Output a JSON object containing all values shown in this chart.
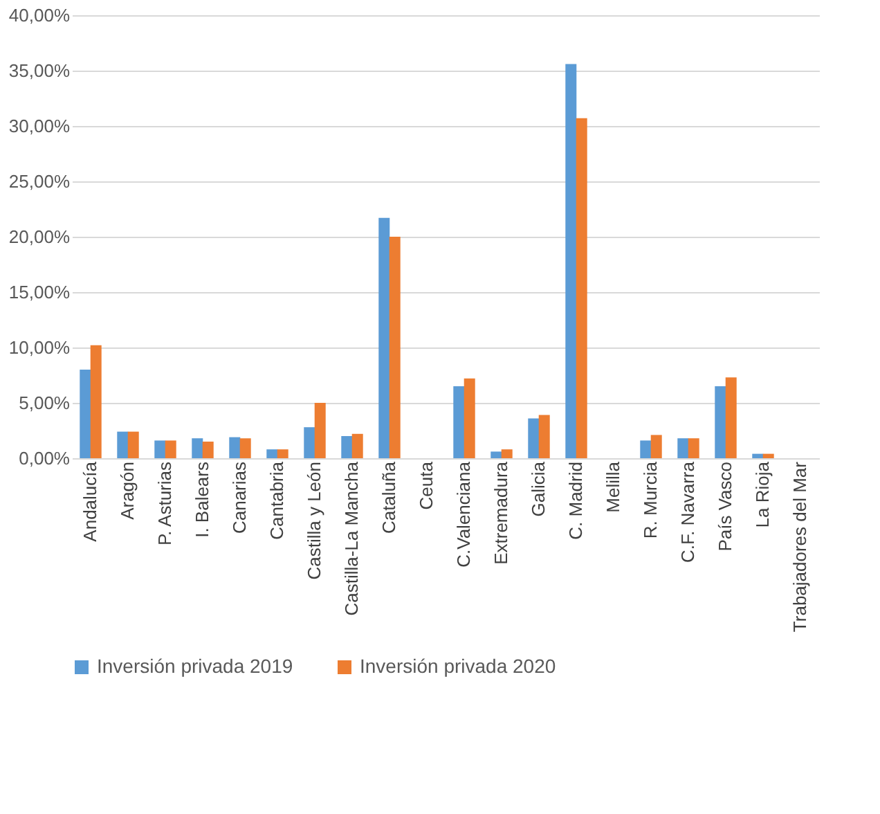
{
  "chart_data": {
    "type": "bar",
    "categories": [
      "Andalucía",
      "Aragón",
      "P. Asturias",
      "I. Balears",
      "Canarias",
      "Cantabria",
      "Castilla y León",
      "Castilla-La Mancha",
      "Cataluña",
      "Ceuta",
      "C.Valenciana",
      "Extremadura",
      "Galicia",
      "C. Madrid",
      "Melilla",
      "R. Murcia",
      "C.F. Navarra",
      "País Vasco",
      "La Rioja",
      "Trabajadores del Mar"
    ],
    "series": [
      {
        "name": "Inversión privada 2019",
        "color": "#5b9bd5",
        "values": [
          8.0,
          2.4,
          1.6,
          1.8,
          1.9,
          0.8,
          2.8,
          2.0,
          21.7,
          0,
          6.5,
          0.6,
          3.6,
          35.6,
          0,
          1.6,
          1.8,
          6.5,
          0.4,
          0
        ]
      },
      {
        "name": "Inversión privada 2020",
        "color": "#ed7d31",
        "values": [
          10.2,
          2.4,
          1.6,
          1.5,
          1.8,
          0.8,
          5.0,
          2.2,
          20.0,
          0,
          7.2,
          0.8,
          3.9,
          30.7,
          0,
          2.1,
          1.8,
          7.3,
          0.4,
          0
        ]
      }
    ],
    "ylim": [
      0,
      40
    ],
    "yticks": [
      {
        "value": 0,
        "label": "0,00%"
      },
      {
        "value": 5,
        "label": "5,00%"
      },
      {
        "value": 10,
        "label": "10,00%"
      },
      {
        "value": 15,
        "label": "15,00%"
      },
      {
        "value": 20,
        "label": "20,00%"
      },
      {
        "value": 25,
        "label": "25,00%"
      },
      {
        "value": 30,
        "label": "30,00%"
      },
      {
        "value": 35,
        "label": "35,00%"
      },
      {
        "value": 40,
        "label": "40,00%"
      }
    ],
    "grid": "y",
    "legend": "bottom"
  }
}
